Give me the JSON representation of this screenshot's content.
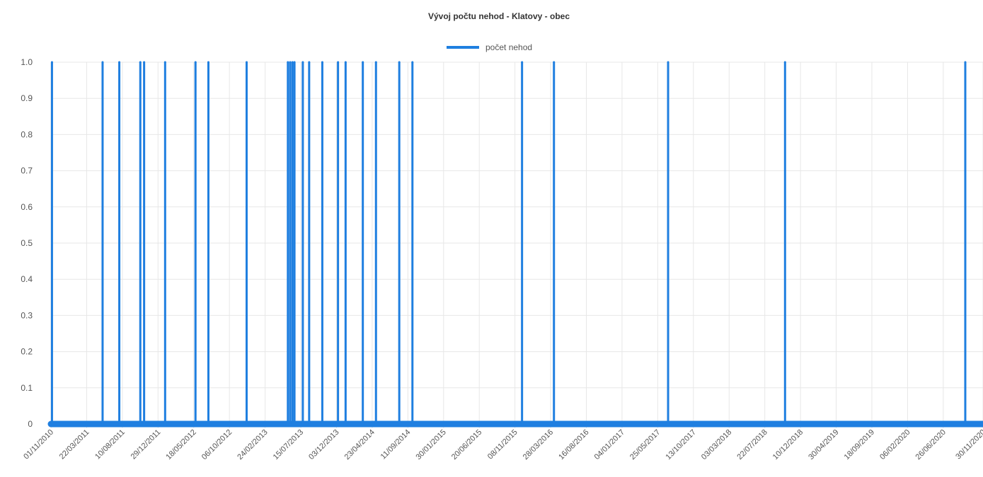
{
  "colors": {
    "series": "#1f7fe0",
    "grid": "#e7e7e7",
    "text": "#555555",
    "title": "#333333"
  },
  "chart_data": {
    "type": "line",
    "title": "Vývoj počtu nehod - Klatovy - obec",
    "xlabel": "",
    "ylabel": "",
    "ylim": [
      0,
      1
    ],
    "xlim": [
      "2010-11-01",
      "2020-11-30"
    ],
    "grid": true,
    "legend": "top-center",
    "x_ticks": [
      "01/11/2010",
      "22/03/2011",
      "10/08/2011",
      "29/12/2011",
      "18/05/2012",
      "06/10/2012",
      "24/02/2013",
      "15/07/2013",
      "03/12/2013",
      "23/04/2014",
      "11/09/2014",
      "30/01/2015",
      "20/06/2015",
      "08/11/2015",
      "28/03/2016",
      "16/08/2016",
      "04/01/2017",
      "25/05/2017",
      "13/10/2017",
      "03/03/2018",
      "22/07/2018",
      "10/12/2018",
      "30/04/2019",
      "18/09/2019",
      "06/02/2020",
      "26/06/2020",
      "30/11/2020"
    ],
    "y_ticks": [
      "0",
      "0.1",
      "0.2",
      "0.3",
      "0.4",
      "0.5",
      "0.6",
      "0.7",
      "0.8",
      "0.9",
      "1.0"
    ],
    "series": [
      {
        "name": "počet nehod",
        "baseline": 0,
        "spikes": [
          {
            "x": "2010-11-05",
            "y": 1
          },
          {
            "x": "2011-05-24",
            "y": 1
          },
          {
            "x": "2011-07-29",
            "y": 1
          },
          {
            "x": "2011-10-20",
            "y": 1
          },
          {
            "x": "2011-11-04",
            "y": 1
          },
          {
            "x": "2012-01-26",
            "y": 1
          },
          {
            "x": "2012-05-25",
            "y": 1
          },
          {
            "x": "2012-07-15",
            "y": 1
          },
          {
            "x": "2012-12-13",
            "y": 1
          },
          {
            "x": "2013-05-25",
            "y": 1
          },
          {
            "x": "2013-06-03",
            "y": 1
          },
          {
            "x": "2013-06-12",
            "y": 1
          },
          {
            "x": "2013-06-20",
            "y": 1
          },
          {
            "x": "2013-07-23",
            "y": 1
          },
          {
            "x": "2013-08-17",
            "y": 1
          },
          {
            "x": "2013-10-08",
            "y": 1
          },
          {
            "x": "2013-12-09",
            "y": 1
          },
          {
            "x": "2014-01-08",
            "y": 1
          },
          {
            "x": "2014-03-17",
            "y": 1
          },
          {
            "x": "2014-05-08",
            "y": 1
          },
          {
            "x": "2014-08-08",
            "y": 1
          },
          {
            "x": "2014-09-29",
            "y": 1
          },
          {
            "x": "2015-12-06",
            "y": 1
          },
          {
            "x": "2016-04-10",
            "y": 1
          },
          {
            "x": "2017-07-05",
            "y": 1
          },
          {
            "x": "2018-10-10",
            "y": 1
          },
          {
            "x": "2020-09-21",
            "y": 1
          }
        ]
      }
    ]
  }
}
